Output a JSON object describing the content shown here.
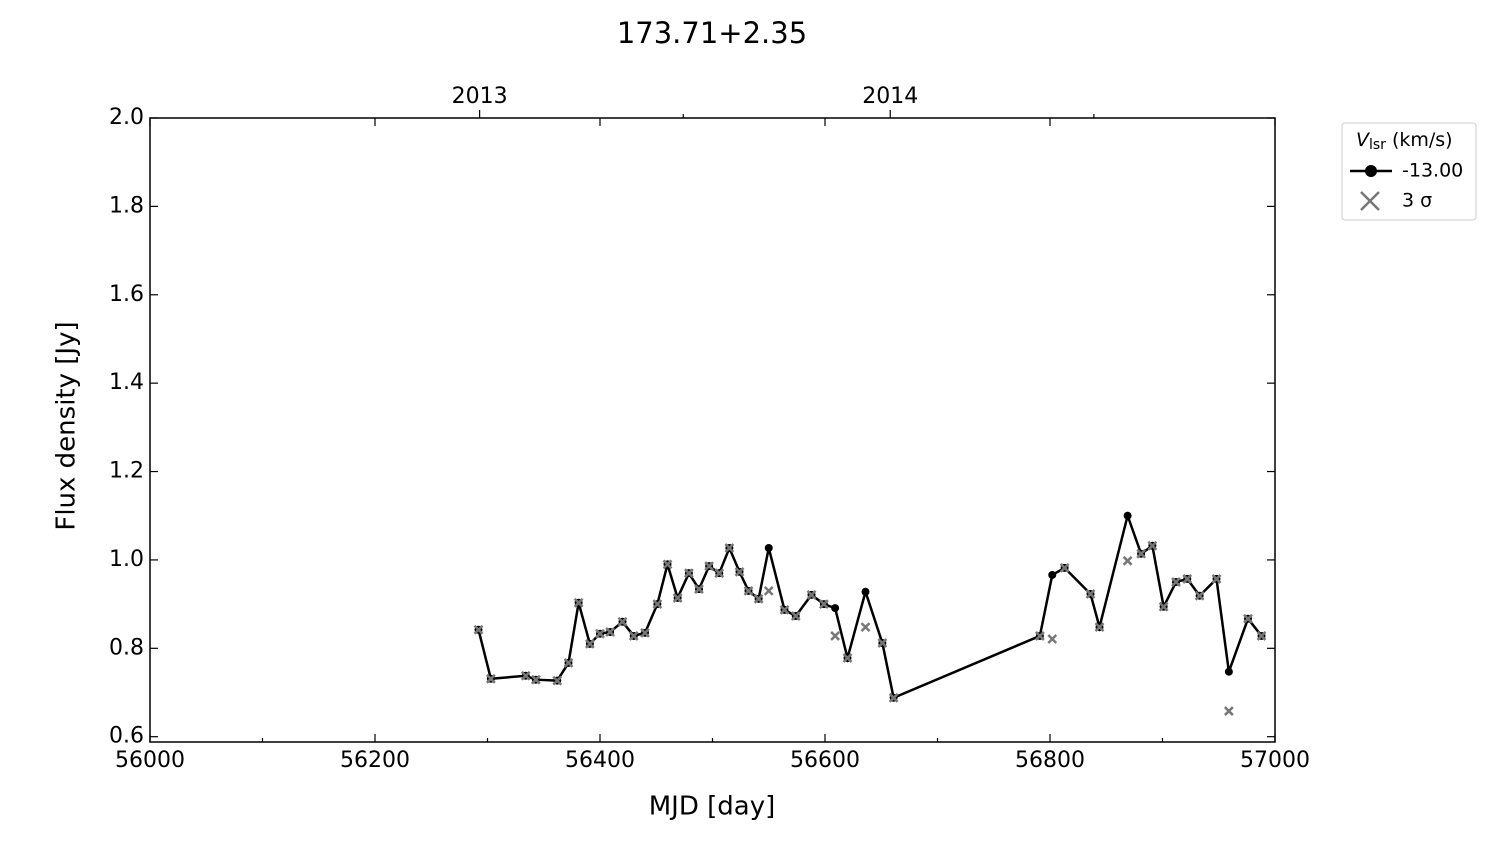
{
  "chart_data": {
    "type": "line",
    "title": "173.71+2.35",
    "x_label": "MJD [day]",
    "y_label": "Flux density [Jy]",
    "legend_title": {
      "symbol": "V",
      "subscript": "lsr",
      "unit": "(km/s)"
    },
    "legend_position": "outside-upper-right",
    "xlim": [
      56000,
      57000
    ],
    "ylim": [
      0.588,
      2.0
    ],
    "xticks": [
      56000,
      56200,
      56400,
      56600,
      56800,
      57000
    ],
    "xminor": [
      56100,
      56300,
      56500,
      56700,
      56900
    ],
    "yticks": [
      0.6,
      0.8,
      {
        "value": 1,
        "label": "1.0"
      },
      1.2,
      1.4,
      1.6,
      1.8,
      {
        "value": 2,
        "label": "2.0"
      }
    ],
    "x2ticks": [
      {
        "value": 56293,
        "label": "2013"
      },
      {
        "value": 56658,
        "label": "2014"
      }
    ],
    "x2minor": [
      56474,
      56839
    ],
    "x": [
      56292,
      56303,
      56334,
      56343,
      56362,
      56372,
      56381,
      56391,
      56400,
      56409,
      56420,
      56430,
      56440,
      56451,
      56460,
      56469,
      56479,
      56488,
      56497,
      56506,
      56515,
      56524,
      56532,
      56541,
      56550,
      56564,
      56574,
      56588,
      56599,
      56609,
      56620,
      56636,
      56651,
      56661,
      56791,
      56802,
      56813,
      56836,
      56844,
      56869,
      56881,
      56891,
      56901,
      56912,
      56922,
      56933,
      56948,
      56959,
      56976,
      56988
    ],
    "series": [
      {
        "name": "-13.00",
        "color": "#000000",
        "marker": "circle",
        "values": [
          0.842,
          0.731,
          0.738,
          0.729,
          0.727,
          0.767,
          0.903,
          0.81,
          0.833,
          0.837,
          0.86,
          0.828,
          0.835,
          0.9,
          0.99,
          0.914,
          0.97,
          0.934,
          0.986,
          0.97,
          1.027,
          0.973,
          0.93,
          0.912,
          1.027,
          0.887,
          0.873,
          0.921,
          0.9,
          0.891,
          0.778,
          0.928,
          0.812,
          0.688,
          0.828,
          0.966,
          0.982,
          0.923,
          0.848,
          1.1,
          1.014,
          1.032,
          0.894,
          0.95,
          0.957,
          0.919,
          0.957,
          0.747,
          0.867,
          0.828
        ]
      },
      {
        "name": "3 σ",
        "color": "#777777",
        "marker": "x",
        "values": [
          0.842,
          0.731,
          0.738,
          0.729,
          0.727,
          0.767,
          0.903,
          0.81,
          0.833,
          0.837,
          0.86,
          0.828,
          0.835,
          0.9,
          0.99,
          0.914,
          0.97,
          0.934,
          0.986,
          0.97,
          1.027,
          0.973,
          0.93,
          0.912,
          0.93,
          0.887,
          0.873,
          0.921,
          0.9,
          0.828,
          0.778,
          0.848,
          0.812,
          0.688,
          0.828,
          0.821,
          0.982,
          0.923,
          0.848,
          0.998,
          1.014,
          1.032,
          0.894,
          0.95,
          0.957,
          0.919,
          0.957,
          0.658,
          0.867,
          0.828
        ]
      }
    ]
  }
}
